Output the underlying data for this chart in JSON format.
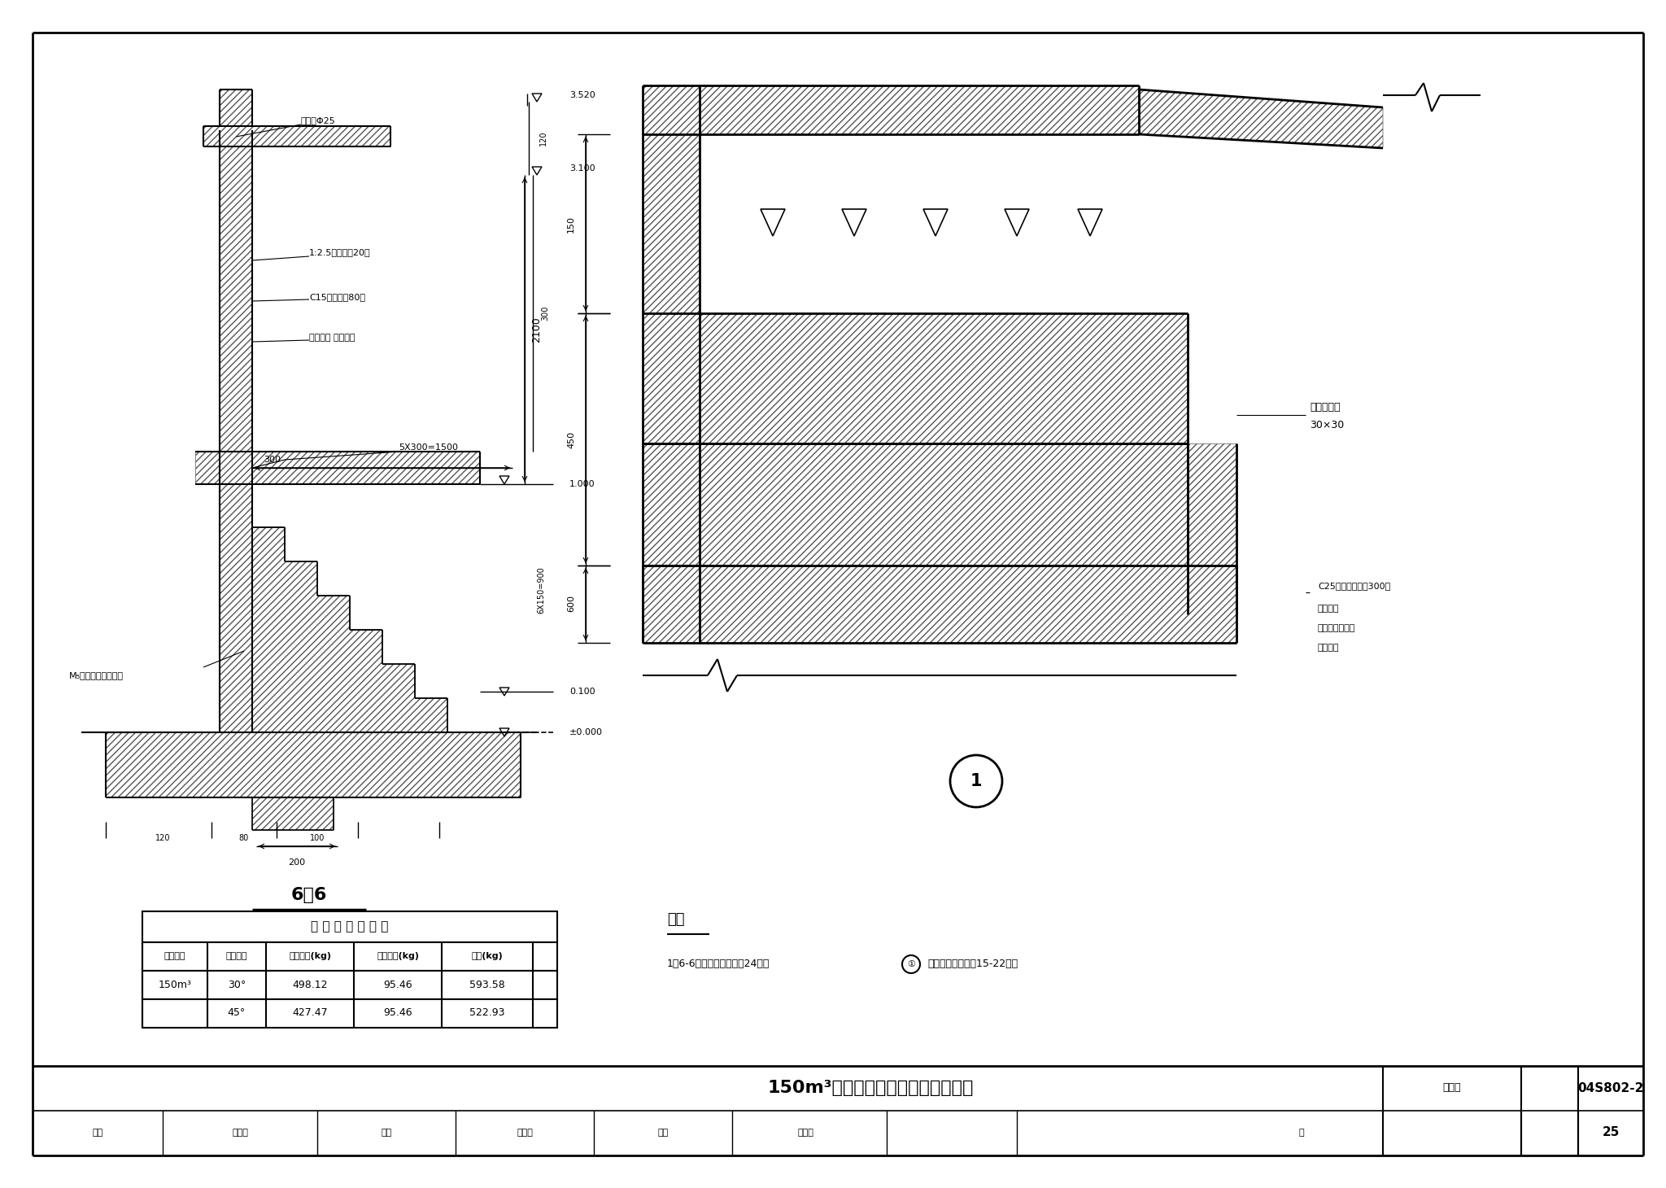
{
  "bg_color": "#ffffff",
  "line_color": "#000000",
  "title_main": "150m³水塔剪面图及节点详图（三）",
  "fig_number": "04S802-2",
  "page": "25",
  "table_title": "栏 杆 锂 材 用 量 表",
  "headers": [
    "水筒容量",
    "水筒倾角",
    "水筒顶盖(kg)",
    "人井平台(kg)",
    "总计(kg)"
  ],
  "row1": [
    "150m³",
    "30°",
    "498.12",
    "95.46",
    "593.58"
  ],
  "row2": [
    "",
    "45°",
    "427.47",
    "95.46",
    "522.93"
  ],
  "notes_title": "说明",
  "notes_line": "1、6-6剪面的位置详见第24页，",
  "notes_line2": "大样的位置详见第15-22页。",
  "section_name": "6—6",
  "label_drain": "排水孔Φ25",
  "label_mortar": "1:2.5水泥沙浆刲20厚",
  "label_concrete": "C15级混凝土80厚",
  "label_backfill": "素土回塡 分层夹实",
  "label_step": "M₅水泥沙浆砍碌踏步",
  "label_dim_300": "300",
  "label_dim_5x300": "5X300=1500",
  "dim_3520": "3.520",
  "dim_3100": "3.100",
  "dim_120": "120",
  "dim_300": "300",
  "dim_2100": "2100",
  "dim_1000": "1.000",
  "dim_6x150": "6X150=900",
  "dim_0100": "0.100",
  "dim_0000": "±0.000",
  "dim_200": "200",
  "dim_80": "80",
  "dim_100": "100",
  "dim_150_r": "150",
  "dim_450_r": "450",
  "dim_600_r": "600",
  "right_label1": "聚硛密封膏",
  "right_label2": "30×30",
  "bot_label1": "C25级混凝土匹充300厚",
  "bot_label2": "人井底板",
  "bot_label3": "饰置混凝土环板",
  "bot_label4": "支模顶板",
  "title_bottom": [
    "审核",
    "归框石",
    "校对",
    "陈显声",
    "设计",
    "王樊峰",
    "页"
  ]
}
